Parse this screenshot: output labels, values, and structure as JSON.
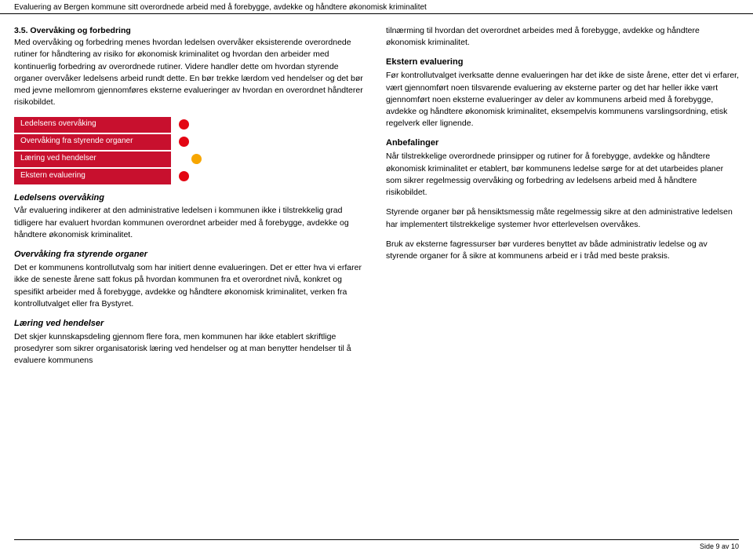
{
  "header": "Evaluering av Bergen kommune sitt overordnede arbeid med å forebygge, avdekke og håndtere økonomisk kriminalitet",
  "left": {
    "section_title": "3.5. Overvåking og forbedring",
    "intro": "Med overvåking og forbedring menes hvordan ledelsen overvåker eksisterende overordnede rutiner for håndtering av risiko for økonomisk kriminalitet og hvordan den arbeider med kontinuerlig forbedring av overordnede rutiner. Videre handler dette om hvordan styrende organer overvåker ledelsens arbeid rundt dette. En bør trekke lærdom ved hendelser og det bør med jevne mellomrom gjennomføres eksterne evalueringer av hvordan en overordnet håndterer risikobildet.",
    "status": {
      "rows": [
        {
          "label": "Ledelsens overvåking",
          "pos": 0
        },
        {
          "label": "Overvåking fra styrende organer",
          "pos": 0
        },
        {
          "label": "Læring ved hendelser",
          "pos": 1
        },
        {
          "label": "Ekstern evaluering",
          "pos": 0
        }
      ],
      "bar_color": "#c8102e",
      "dot_colors": [
        "#e30613",
        "#f7a600",
        "#5cb531"
      ]
    },
    "sub1_head": "Ledelsens overvåking",
    "sub1_body": "Vår evaluering indikerer at den administrative ledelsen i kommunen ikke i tilstrekkelig grad tidligere har evaluert hvordan kommunen overordnet arbeider med å forebygge, avdekke og håndtere økonomisk kriminalitet.",
    "sub2_head": "Overvåking fra styrende organer",
    "sub2_body": "Det er kommunens kontrollutvalg som har initiert denne evalueringen. Det er etter hva vi erfarer ikke de seneste årene satt fokus på hvordan kommunen fra et overordnet nivå, konkret og spesifikt arbeider med å forebygge, avdekke og håndtere økonomisk kriminalitet, verken fra kontrollutvalget eller fra Bystyret.",
    "sub3_head": "Læring ved hendelser",
    "sub3_body": "Det skjer kunnskapsdeling gjennom flere fora, men kommunen har ikke etablert skriftlige prosedyrer som sikrer organisatorisk læring ved hendelser og at man benytter hendelser til å evaluere kommunens"
  },
  "right": {
    "p1": "tilnærming til hvordan det overordnet arbeides med å forebygge, avdekke og håndtere økonomisk kriminalitet.",
    "sub1_head": "Ekstern evaluering",
    "sub1_body": "Før kontrollutvalget iverksatte denne evalueringen har det ikke de siste årene, etter det vi erfarer, vært gjennomført noen tilsvarende evaluering av eksterne parter og det har heller ikke vært gjennomført noen eksterne evalueringer av deler av kommunens arbeid med å forebygge, avdekke og håndtere økonomisk kriminalitet, eksempelvis kommunens varslingsordning, etisk regelverk eller lignende.",
    "sub2_head": "Anbefalinger",
    "sub2_p1": "Når tilstrekkelige overordnede prinsipper og rutiner for å forebygge, avdekke og håndtere økonomisk kriminalitet er etablert, bør kommunens ledelse sørge for at det utarbeides planer som sikrer regelmessig overvåking og forbedring av ledelsens arbeid med å håndtere risikobildet.",
    "sub2_p2": "Styrende organer bør på hensiktsmessig måte regelmessig sikre at den administrative ledelsen har implementert tilstrekkelige systemer hvor etterlevelsen overvåkes.",
    "sub2_p3": "Bruk av eksterne fagressurser bør vurderes benyttet av både administrativ ledelse og av styrende organer for å sikre at kommunens arbeid er i tråd med beste praksis."
  },
  "footer": "Side 9 av 10"
}
